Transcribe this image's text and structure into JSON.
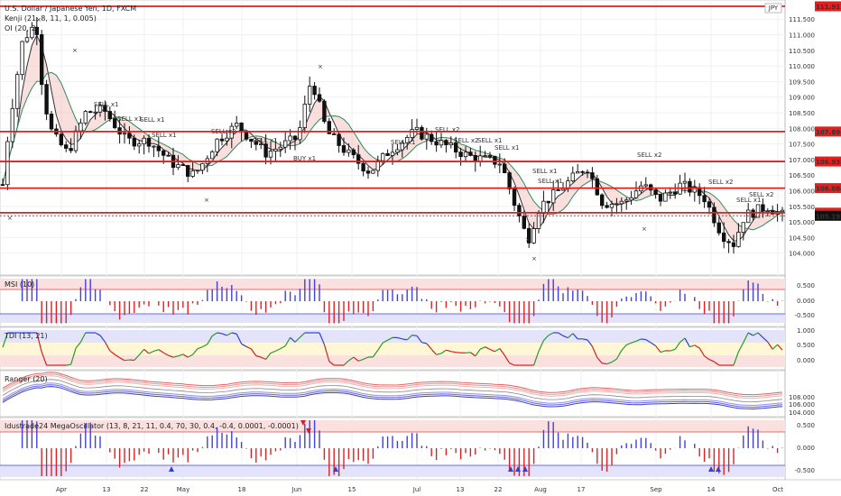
{
  "main": {
    "title": "U.S. Dollar / Japanese Yen, 1D, FXCM",
    "ind1": "Kenji (21, 8, 11, 1, 0.005)",
    "ind2": "OI (20, 2)",
    "symbol_badge": "JPY",
    "price_ticks": [
      "111.500",
      "111.000",
      "110.500",
      "110.000",
      "109.500",
      "109.000",
      "108.500",
      "108.000",
      "107.500",
      "107.000",
      "106.500",
      "106.000",
      "105.500",
      "105.000",
      "104.500",
      "104.000"
    ],
    "levels": [
      {
        "value": "107.898",
        "color": "#e02020"
      },
      {
        "value": "106.938",
        "color": "#e02020"
      },
      {
        "value": "106.084",
        "color": "#e02020"
      },
      {
        "value": "105.297",
        "color": "#e02020"
      },
      {
        "value": "105.197",
        "color": "#111111"
      }
    ],
    "top_level": "111.911",
    "annotations": [
      {
        "text": "SELL x1",
        "color": "#e04040"
      },
      {
        "text": "SELL x1",
        "color": "#e04040"
      },
      {
        "text": "SELL x1",
        "color": "#e04040"
      },
      {
        "text": "SELL x2",
        "color": "#e04040"
      },
      {
        "text": "SELL x1",
        "color": "#e04040"
      },
      {
        "text": "BUY x1",
        "color": "#4050e0"
      },
      {
        "text": "SELL x1",
        "color": "#e04040"
      },
      {
        "text": "SELL x2",
        "color": "#e04040"
      },
      {
        "text": "SELL x1",
        "color": "#e04040"
      },
      {
        "text": "SELL x2",
        "color": "#e04040"
      },
      {
        "text": "SELL x1",
        "color": "#e04040"
      },
      {
        "text": "SELL x1",
        "color": "#e04040"
      },
      {
        "text": "SELL x1",
        "color": "#e04040"
      },
      {
        "text": "SELL x1",
        "color": "#e04040"
      },
      {
        "text": "SELL x2",
        "color": "#e04040"
      },
      {
        "text": "SELL x2",
        "color": "#e04040"
      },
      {
        "text": "SELL x1",
        "color": "#e04040"
      },
      {
        "text": "SELL x2",
        "color": "#e04040"
      }
    ]
  },
  "panels": {
    "msi": {
      "title": "MSI (10)",
      "ticks": [
        "0.500",
        "0.000",
        "-0.500"
      ]
    },
    "tdi": {
      "title": "TDI (13, 21)",
      "ticks": [
        "1.000",
        "0.500",
        "0.000"
      ]
    },
    "ranger": {
      "title": "Ranger (20)",
      "ticks": [
        "108.000",
        "106.000",
        "104.000"
      ]
    },
    "mega": {
      "title": "Idustrade24 MegaOscillator (13, 8, 21, 11, 0.4, 70, 30, 0.4, -0.4, 0.0001, -0.0001)",
      "ticks": [
        "0.500",
        "0.000",
        "-0.500"
      ]
    }
  },
  "time_axis": [
    "Apr",
    "13",
    "22",
    "May",
    "18",
    "Jun",
    "15",
    "Jul",
    "13",
    "22",
    "Aug",
    "17",
    "Sep",
    "14",
    "Oct"
  ],
  "colors": {
    "up": "#ffffff",
    "down": "#111111",
    "bull": "#4040e0",
    "bear": "#e02020",
    "neutral": "#2a9a2a"
  }
}
